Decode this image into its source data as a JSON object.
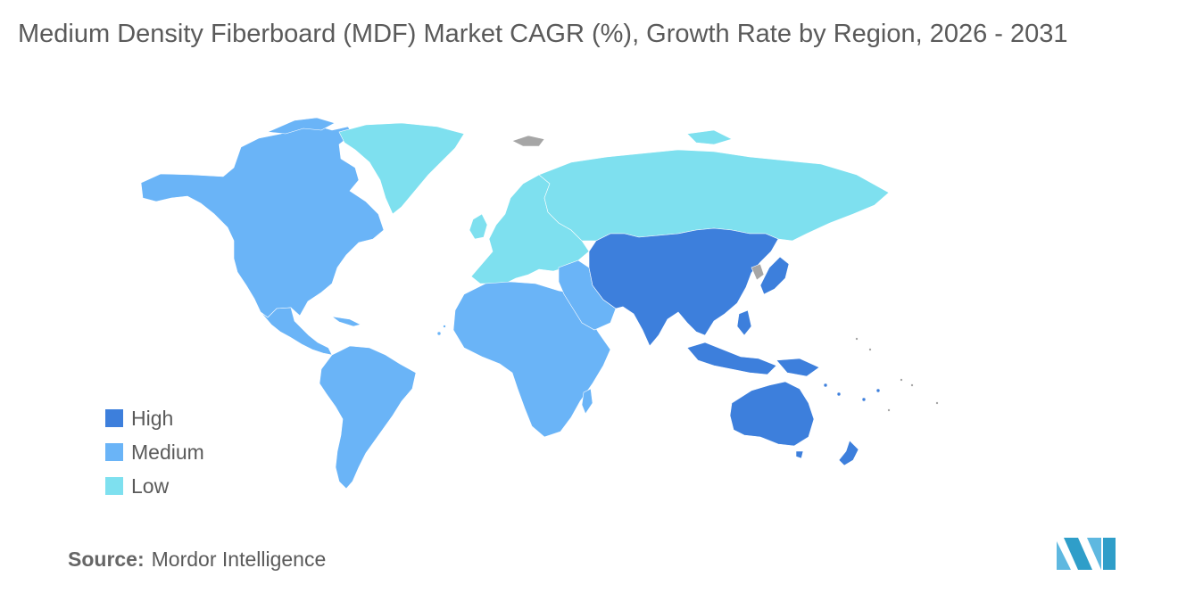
{
  "title": "Medium Density Fiberboard (MDF) Market CAGR (%), Growth Rate by Region, 2026 - 2031",
  "legend": {
    "items": [
      {
        "label": "High",
        "color": "#3d7fdc"
      },
      {
        "label": "Medium",
        "color": "#6ab4f7"
      },
      {
        "label": "Low",
        "color": "#7ee0ef"
      }
    ]
  },
  "colors": {
    "no_data": "#a6a6a6",
    "logo_left": "#5eb8e0",
    "logo_right": "#2f9ec9"
  },
  "regions": [
    {
      "name": "North America",
      "category": "Medium"
    },
    {
      "name": "South America",
      "category": "Medium"
    },
    {
      "name": "Europe",
      "category": "Low"
    },
    {
      "name": "Russia",
      "category": "Low"
    },
    {
      "name": "Greenland",
      "category": "Low"
    },
    {
      "name": "Africa",
      "category": "Medium"
    },
    {
      "name": "Middle East",
      "category": "Medium"
    },
    {
      "name": "Asia-Pacific",
      "category": "High"
    },
    {
      "name": "Australia",
      "category": "High"
    }
  ],
  "source": {
    "label": "Source:",
    "value": "Mordor Intelligence"
  },
  "logo": {
    "icon": "mordor-intelligence-logo"
  }
}
